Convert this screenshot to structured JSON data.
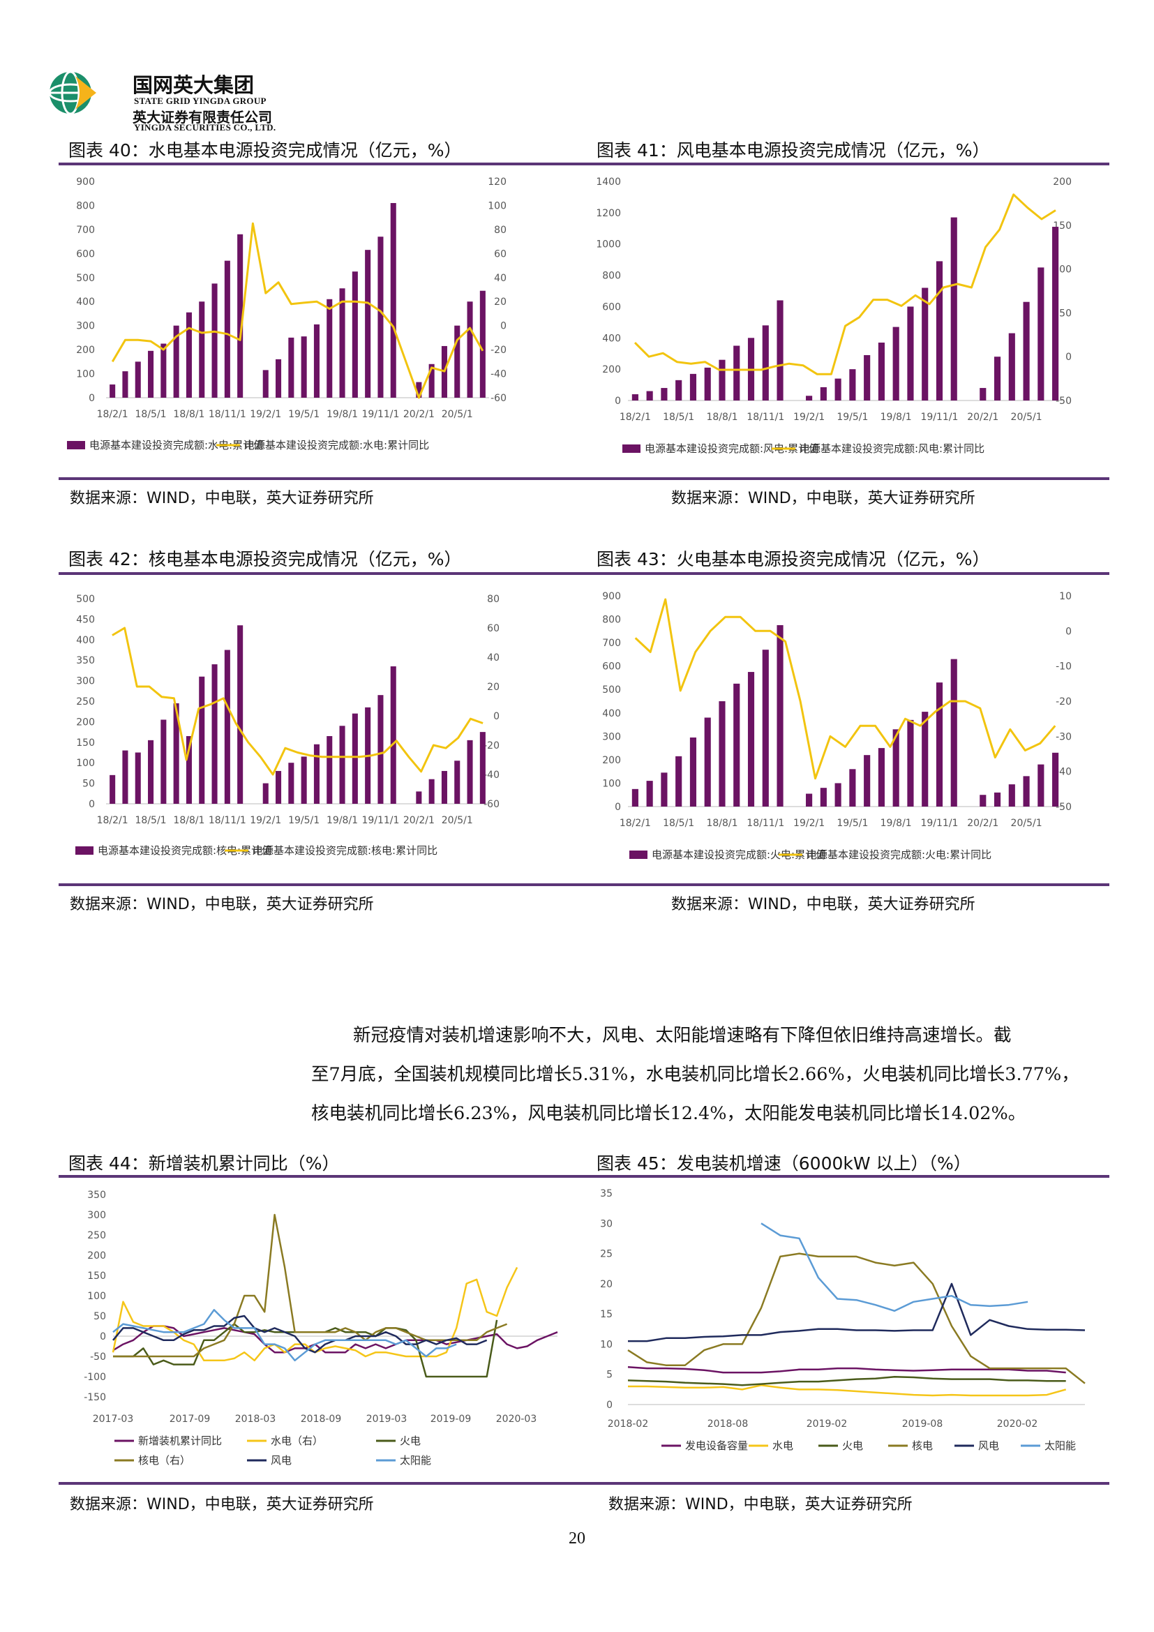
{
  "header": {
    "company_cn": "国网英大集团",
    "company_en": "STATE GRID YINGDA GROUP",
    "subsidiary_cn": "英大证券有限责任公司",
    "subsidiary_en": "YINGDA SECURITIES CO., LTD."
  },
  "figures": {
    "fig40": {
      "title": "图表 40：水电基本电源投资完成情况（亿元，%）",
      "source": "数据来源：WIND，中电联，英大证券研究所"
    },
    "fig41": {
      "title": "图表 41：风电基本电源投资完成情况（亿元，%）",
      "source": "数据来源：WIND，中电联，英大证券研究所"
    },
    "fig42": {
      "title": "图表 42：核电基本电源投资完成情况（亿元，%）",
      "source": "数据来源：WIND，中电联，英大证券研究所"
    },
    "fig43": {
      "title": "图表 43：火电基本电源投资完成情况（亿元，%）",
      "source": "数据来源：WIND，中电联，英大证券研究所"
    },
    "fig44": {
      "title": "图表 44：新增装机累计同比（%）",
      "source": "数据来源：WIND，中电联，英大证券研究所"
    },
    "fig45": {
      "title": "图表 45：发电装机增速（6000kW 以上）（%）",
      "source": "数据来源：WIND，中电联，英大证券研究所"
    }
  },
  "paragraph": [
    "新冠疫情对装机增速影响不大，风电、太阳能增速略有下降但依旧维持高速增长。截",
    "至7月底，全国装机规模同比增长5.31%，水电装机同比增长2.66%，火电装机同比增长3.77%，",
    "核电装机同比增长6.23%，风电装机同比增长12.4%，太阳能发电装机同比增长14.02%。"
  ],
  "page_number": "20",
  "colors": {
    "purple": "#6b1363",
    "yellow": "#f2c40f",
    "rule": "#5b3577"
  },
  "chart_data": [
    {
      "id": "fig40",
      "type": "bar+line",
      "x_ticks": [
        "18/2/1",
        "18/5/1",
        "18/8/1",
        "18/11/1",
        "19/2/1",
        "19/5/1",
        "19/8/1",
        "19/11/1",
        "20/2/1",
        "20/5/1"
      ],
      "ylim_left": [
        0,
        900
      ],
      "yticks_left": [
        0,
        100,
        200,
        300,
        400,
        500,
        600,
        700,
        800,
        900
      ],
      "ylim_right": [
        -60,
        120
      ],
      "yticks_right": [
        -60,
        -40,
        -20,
        0,
        20,
        40,
        60,
        80,
        100,
        120
      ],
      "series": [
        {
          "name": "电源基本建设投资完成额:水电:累计值",
          "type": "bar",
          "values": [
            55,
            110,
            150,
            195,
            225,
            300,
            355,
            400,
            475,
            570,
            680,
            null,
            115,
            160,
            250,
            255,
            305,
            410,
            455,
            525,
            615,
            670,
            810,
            null,
            65,
            140,
            215,
            300,
            400,
            445
          ]
        },
        {
          "name": "电源基本建设投资完成额:水电:累计同比",
          "type": "line",
          "values": [
            -30,
            -12,
            -12,
            -13,
            -20,
            -9,
            -2,
            -6,
            -5,
            -7,
            -12,
            85,
            27,
            36,
            18,
            19,
            20,
            14,
            20,
            20,
            19,
            12,
            -1,
            null,
            -60,
            -35,
            -38,
            -12,
            -2,
            -21
          ]
        }
      ]
    },
    {
      "id": "fig41",
      "type": "bar+line",
      "x_ticks": [
        "18/2/1",
        "18/5/1",
        "18/8/1",
        "18/11/1",
        "19/2/1",
        "19/5/1",
        "19/8/1",
        "19/11/1",
        "20/2/1",
        "20/5/1"
      ],
      "ylim_left": [
        0,
        1400
      ],
      "yticks_left": [
        0,
        200,
        400,
        600,
        800,
        1000,
        1200,
        1400
      ],
      "ylim_right": [
        -50,
        200
      ],
      "yticks_right": [
        -50,
        0,
        50,
        100,
        150,
        200
      ],
      "series": [
        {
          "name": "电源基本建设投资完成额:风电:累计值",
          "type": "bar",
          "values": [
            40,
            60,
            80,
            130,
            170,
            210,
            260,
            350,
            400,
            480,
            640,
            null,
            30,
            85,
            140,
            200,
            290,
            370,
            470,
            600,
            720,
            890,
            1170,
            null,
            80,
            280,
            430,
            630,
            850,
            1110
          ]
        },
        {
          "name": "电源基本建设投资完成额:风电:累计同比",
          "type": "line",
          "values": [
            16,
            0,
            4,
            -6,
            -8,
            -6,
            -15,
            -15,
            -15,
            -15,
            -11,
            -8,
            -10,
            -20,
            -20,
            35,
            45,
            65,
            65,
            58,
            70,
            60,
            79,
            83,
            79,
            125,
            145,
            185,
            170,
            157,
            167
          ]
        }
      ]
    },
    {
      "id": "fig42",
      "type": "bar+line",
      "x_ticks": [
        "18/2/1",
        "18/5/1",
        "18/8/1",
        "18/11/1",
        "19/2/1",
        "19/5/1",
        "19/8/1",
        "19/11/1",
        "20/2/1",
        "20/5/1"
      ],
      "ylim_left": [
        0,
        500
      ],
      "yticks_left": [
        0,
        50,
        100,
        150,
        200,
        250,
        300,
        350,
        400,
        450,
        500
      ],
      "ylim_right": [
        -60,
        80
      ],
      "yticks_right": [
        -60,
        -40,
        -20,
        0,
        20,
        40,
        60,
        80
      ],
      "series": [
        {
          "name": "电源基本建设投资完成额:核电:累计值",
          "type": "bar",
          "values": [
            70,
            130,
            125,
            155,
            205,
            245,
            165,
            310,
            340,
            375,
            435,
            null,
            50,
            80,
            100,
            115,
            145,
            165,
            190,
            220,
            235,
            265,
            335,
            null,
            30,
            60,
            80,
            105,
            155,
            175
          ]
        },
        {
          "name": "电源基本建设投资完成额:核电:累计同比",
          "type": "line",
          "values": [
            55,
            60,
            20,
            20,
            13,
            12,
            -30,
            5,
            8,
            12,
            -5,
            -18,
            -28,
            -40,
            -22,
            -25,
            -27,
            -28,
            -28,
            -28,
            -28,
            -27,
            -25,
            -17,
            -28,
            -38,
            -20,
            -22,
            -15,
            -2,
            -5
          ]
        }
      ]
    },
    {
      "id": "fig43",
      "type": "bar+line",
      "x_ticks": [
        "18/2/1",
        "18/5/1",
        "18/8/1",
        "18/11/1",
        "19/2/1",
        "19/5/1",
        "19/8/1",
        "19/11/1",
        "20/2/1",
        "20/5/1"
      ],
      "ylim_left": [
        0,
        900
      ],
      "yticks_left": [
        0,
        100,
        200,
        300,
        400,
        500,
        600,
        700,
        800,
        900
      ],
      "ylim_right": [
        -50,
        10
      ],
      "yticks_right": [
        -50,
        -40,
        -30,
        -20,
        -10,
        0,
        10
      ],
      "series": [
        {
          "name": "电源基本建设投资完成额:火电:累计值",
          "type": "bar",
          "values": [
            75,
            110,
            145,
            215,
            295,
            380,
            450,
            525,
            575,
            670,
            775,
            null,
            55,
            80,
            100,
            160,
            220,
            250,
            330,
            370,
            405,
            530,
            630,
            null,
            50,
            60,
            95,
            130,
            180,
            230
          ]
        },
        {
          "name": "电源基本建设投资完成额:火电:累计同比",
          "type": "line",
          "values": [
            -2,
            -6,
            9,
            -17,
            -6,
            0,
            4,
            4,
            0,
            0,
            -3,
            -20,
            -42,
            -30,
            -33,
            -27,
            -27,
            -33,
            -25,
            -27,
            -23,
            -20,
            -20,
            -22,
            -36,
            -28,
            -34,
            -32,
            -27
          ]
        }
      ]
    },
    {
      "id": "fig44",
      "type": "line",
      "x_ticks": [
        "2017-03",
        "2017-09",
        "2018-03",
        "2018-09",
        "2019-03",
        "2019-09",
        "2020-03"
      ],
      "ylim": [
        -150,
        350
      ],
      "yticks": [
        -150,
        -100,
        -50,
        0,
        50,
        100,
        150,
        200,
        250,
        300,
        350
      ],
      "series": [
        {
          "name": "新增装机累计同比",
          "values": [
            -35,
            -20,
            -10,
            10,
            25,
            25,
            20,
            0,
            5,
            10,
            15,
            20,
            15,
            10,
            5,
            -20,
            -40,
            -40,
            -30,
            -30,
            -20,
            -40,
            -40,
            -40,
            -20,
            -30,
            -20,
            -30,
            -20,
            -10,
            -10,
            -10,
            -10,
            -20,
            -15,
            -10,
            -5,
            0,
            5,
            -20,
            -30,
            -25,
            -10,
            0,
            10
          ]
        },
        {
          "name": "水电（右）",
          "values": [
            -40,
            85,
            35,
            25,
            25,
            25,
            10,
            -10,
            -20,
            -60,
            -60,
            -60,
            -55,
            -40,
            -60,
            -30,
            -20,
            -40,
            -20,
            -20,
            -40,
            -30,
            -25,
            -30,
            -35,
            -50,
            -40,
            -40,
            -45,
            -50,
            -50,
            -50,
            -50,
            -40,
            20,
            130,
            140,
            60,
            50,
            120,
            170
          ]
        },
        {
          "name": "火电",
          "values": [
            -50,
            -50,
            -50,
            -30,
            -70,
            -60,
            -70,
            -70,
            -70,
            -10,
            -10,
            10,
            30,
            10,
            10,
            15,
            10,
            10,
            10,
            10,
            10,
            10,
            20,
            10,
            10,
            10,
            0,
            20,
            20,
            15,
            -10,
            -100,
            -100,
            -100,
            -100,
            -100,
            -100,
            -100,
            40
          ]
        },
        {
          "name": "核电（右）",
          "values": [
            -50,
            -50,
            -50,
            -50,
            -50,
            -50,
            -50,
            -50,
            -50,
            -30,
            -20,
            -10,
            30,
            100,
            100,
            60,
            300,
            170,
            10,
            10,
            10,
            10,
            10,
            20,
            10,
            -10,
            10,
            20,
            20,
            10,
            0,
            -10,
            -10,
            -10,
            -10,
            -10,
            -10,
            10,
            20,
            30
          ]
        },
        {
          "name": "风电",
          "values": [
            -10,
            20,
            20,
            10,
            0,
            -10,
            -10,
            5,
            15,
            15,
            25,
            25,
            45,
            50,
            20,
            10,
            20,
            10,
            0,
            -30,
            -40,
            -20,
            -10,
            -10,
            0,
            0,
            0,
            10,
            0,
            -20,
            -20,
            -10,
            -20,
            -10,
            -5,
            -20,
            -20,
            -10
          ]
        },
        {
          "name": "太阳能",
          "values": [
            10,
            30,
            25,
            20,
            15,
            10,
            10,
            10,
            20,
            30,
            65,
            40,
            20,
            20,
            20,
            -20,
            -20,
            -30,
            -60,
            -40,
            -20,
            -10,
            -10,
            -10,
            -10,
            -10,
            -10,
            -10,
            -20,
            -10,
            -30,
            -50,
            -30,
            -30,
            -20
          ]
        }
      ]
    },
    {
      "id": "fig45",
      "type": "line",
      "x_ticks": [
        "2018-02",
        "2018-08",
        "2019-02",
        "2019-08",
        "2020-02"
      ],
      "ylim": [
        0,
        35
      ],
      "yticks": [
        0,
        5,
        10,
        15,
        20,
        25,
        30,
        35
      ],
      "series": [
        {
          "name": "发电设备容量",
          "values": [
            6.2,
            6,
            6,
            5.9,
            5.7,
            5.3,
            5.3,
            5.3,
            5.5,
            5.8,
            5.8,
            6,
            6,
            5.8,
            5.7,
            5.6,
            5.7,
            5.8,
            5.8,
            5.8,
            5.8,
            5.6,
            5.6,
            5.3
          ]
        },
        {
          "name": "水电",
          "values": [
            3,
            3,
            2.9,
            2.8,
            2.8,
            2.9,
            2.5,
            3.2,
            2.8,
            2.5,
            2.5,
            2.4,
            2.2,
            2,
            1.8,
            1.6,
            1.5,
            1.6,
            1.5,
            1.5,
            1.5,
            1.5,
            1.6,
            2.5
          ]
        },
        {
          "name": "火电",
          "values": [
            4,
            3.9,
            3.8,
            3.6,
            3.5,
            3.4,
            3.2,
            3.4,
            3.6,
            3.8,
            3.8,
            4,
            4.2,
            4.3,
            4.6,
            4.5,
            4.3,
            4.2,
            4.2,
            4.2,
            4,
            4,
            3.9,
            3.9
          ]
        },
        {
          "name": "核电",
          "values": [
            9,
            7,
            6.5,
            6.5,
            9,
            10,
            10,
            16,
            24.5,
            25,
            24.5,
            24.5,
            24.5,
            23.5,
            23,
            23.5,
            20,
            13,
            8,
            6,
            6,
            6,
            6,
            6,
            3.5
          ]
        },
        {
          "name": "风电",
          "values": [
            10.5,
            10.5,
            11,
            11,
            11.2,
            11.3,
            11.5,
            11.5,
            12,
            12.2,
            12.5,
            12.5,
            12.3,
            12.3,
            12.2,
            12.3,
            12.3,
            20,
            11.5,
            14,
            13,
            12.5,
            12.4,
            12.4,
            12.3
          ]
        },
        {
          "name": "太阳能",
          "values": [
            30,
            28,
            27.5,
            21,
            17.5,
            17.3,
            16.5,
            15.5,
            17,
            17.5,
            18,
            16.5,
            16.3,
            16.5,
            17
          ]
        }
      ]
    }
  ]
}
